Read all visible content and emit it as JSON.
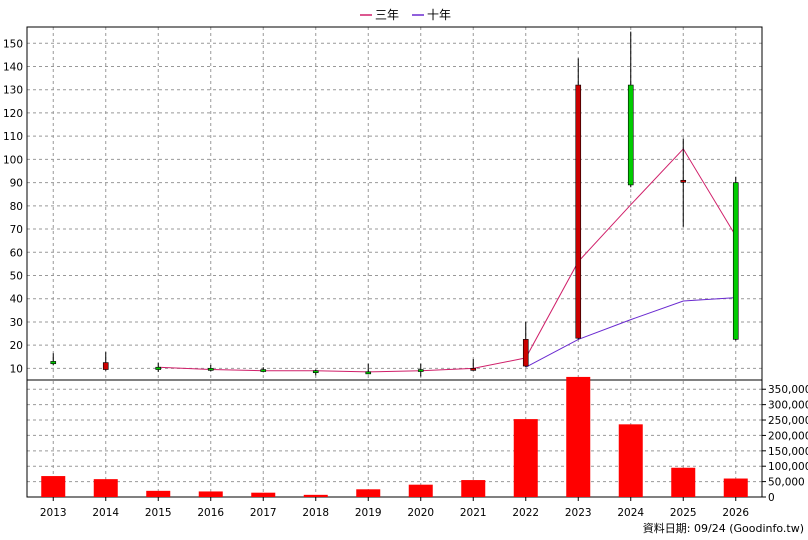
{
  "chart_data": {
    "type": "candlestick+line+bar",
    "legend": [
      {
        "name": "三年",
        "color": "#d0206a"
      },
      {
        "name": "十年",
        "color": "#6a2ad0"
      }
    ],
    "categories": [
      "2013",
      "2014",
      "2015",
      "2016",
      "2017",
      "2018",
      "2019",
      "2020",
      "2021",
      "2022",
      "2023",
      "2024",
      "2025",
      "2026"
    ],
    "price_axis": {
      "ylim": [
        5,
        157
      ],
      "ticks": [
        10,
        20,
        30,
        40,
        50,
        60,
        70,
        80,
        90,
        100,
        110,
        120,
        130,
        140,
        150
      ]
    },
    "candles": [
      {
        "open": 13.0,
        "close": 12.0,
        "high": 16.5,
        "low": 11.5
      },
      {
        "open": 9.5,
        "close": 12.5,
        "high": 17.0,
        "low": 9.0
      },
      {
        "open": 10.5,
        "close": 9.5,
        "high": 12.5,
        "low": 8.5
      },
      {
        "open": 10.0,
        "close": 9.5,
        "high": 11.5,
        "low": 8.8
      },
      {
        "open": 9.5,
        "close": 9.0,
        "high": 10.5,
        "low": 8.3
      },
      {
        "open": 9.0,
        "close": 8.5,
        "high": 9.5,
        "low": 7.0
      },
      {
        "open": 8.5,
        "close": 8.0,
        "high": 12.0,
        "low": 7.5
      },
      {
        "open": 9.5,
        "close": 9.0,
        "high": 12.0,
        "low": 6.5
      },
      {
        "open": 9.5,
        "close": 10.0,
        "high": 14.0,
        "low": 9.0
      },
      {
        "open": 11.0,
        "close": 22.5,
        "high": 30.0,
        "low": 10.5
      },
      {
        "open": 23.0,
        "close": 132.0,
        "high": 143.5,
        "low": 22.5
      },
      {
        "open": 132.0,
        "close": 89.0,
        "high": 155.0,
        "low": 88.0
      },
      {
        "open": 90.5,
        "close": 91.0,
        "high": 109.0,
        "low": 71.0
      },
      {
        "open": 90.0,
        "close": 22.5,
        "high": 92.5,
        "low": 22.0
      }
    ],
    "series": [
      {
        "name": "三年",
        "values": [
          null,
          null,
          10.5,
          9.5,
          9.0,
          9.0,
          8.5,
          9.0,
          10.0,
          14.5,
          56.0,
          80.5,
          104.5,
          67.0
        ]
      },
      {
        "name": "十年",
        "values": [
          null,
          null,
          null,
          null,
          null,
          null,
          null,
          null,
          null,
          10.5,
          22.5,
          31.0,
          39.0,
          40.5
        ]
      }
    ],
    "volume_axis": {
      "ylim": [
        0,
        380000
      ],
      "ticks": [
        0,
        50000,
        100000,
        150000,
        200000,
        250000,
        300000,
        350000
      ],
      "tick_labels": [
        "0",
        "50,000",
        "100,000",
        "150,000",
        "200,000",
        "250,000",
        "300,000",
        "350,000"
      ]
    },
    "volume": [
      68000,
      58000,
      20000,
      18000,
      14000,
      7000,
      25000,
      40000,
      55000,
      253000,
      390000,
      236000,
      95000,
      60000
    ]
  },
  "footer": {
    "source": "資料日期: 09/24 (Goodinfo.tw)"
  },
  "colors": {
    "up": "#cc0000",
    "down": "#00cc00",
    "volume": "#ff0000",
    "grid": "#999999",
    "ma3": "#d0206a",
    "ma10": "#6a2ad0"
  }
}
